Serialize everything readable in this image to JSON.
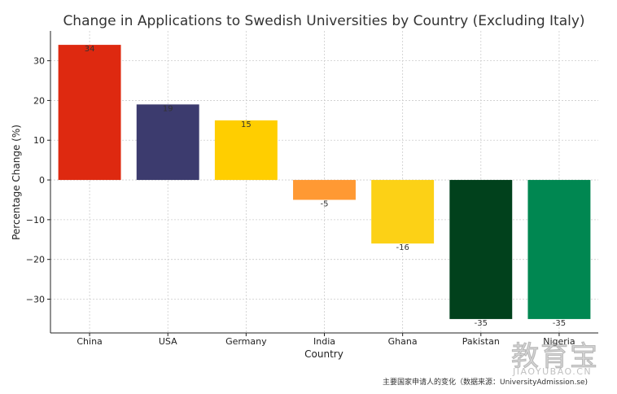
{
  "chart_data": {
    "type": "bar",
    "title": "Change in Applications to Swedish Universities by Country (Excluding Italy)",
    "xlabel": "Country",
    "ylabel": "Percentage Change (%)",
    "categories": [
      "China",
      "USA",
      "Germany",
      "India",
      "Ghana",
      "Pakistan",
      "Nigeria"
    ],
    "values": [
      34,
      19,
      15,
      -5,
      -16,
      -35,
      -35
    ],
    "data_labels": [
      "34",
      "19",
      "15",
      "-5",
      "-16",
      "-35",
      "-35"
    ],
    "colors": [
      "#DE2910",
      "#3C3B6E",
      "#FFCE00",
      "#FF9933",
      "#FCD116",
      "#01411C",
      "#008751"
    ],
    "yticks": [
      30,
      20,
      10,
      0,
      -10,
      -20,
      -30
    ],
    "ytick_labels": [
      "30",
      "20",
      "10",
      "0",
      "−10",
      "−20",
      "−30"
    ],
    "ylim": [
      -38.5,
      37.5
    ],
    "grid": true
  },
  "footer": {
    "source_note": "主要国家申请人的变化（数据来源：UniversityAdmission.se)"
  },
  "watermark": {
    "main": "教育宝",
    "sub": "JIAOYUBAO.CN"
  }
}
